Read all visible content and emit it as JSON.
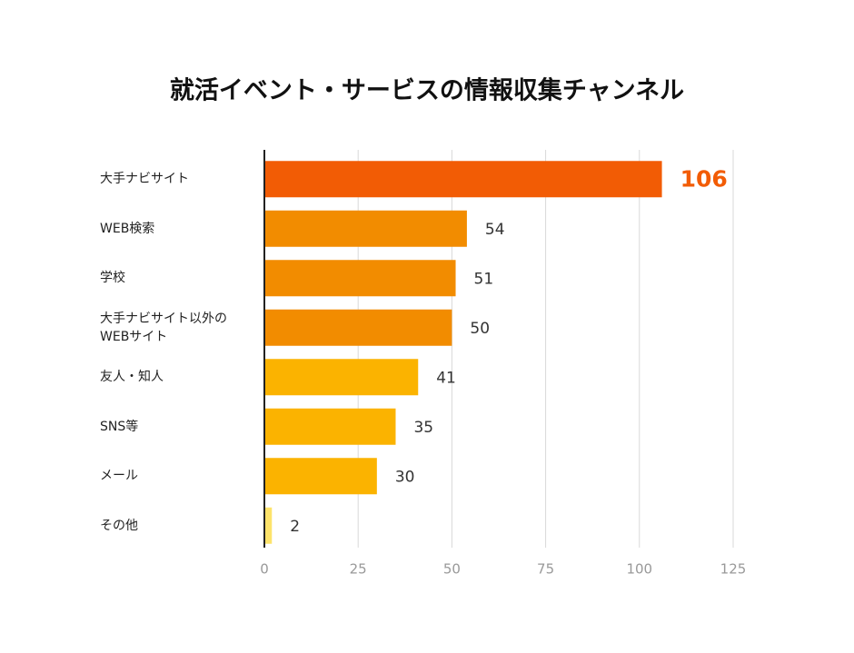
{
  "chart_data": {
    "type": "barh",
    "title": "就活イベント・サービスの情報収集チャンネル",
    "categories": [
      "大手ナビサイト",
      "WEB検索",
      "学校",
      "大手ナビサイト以外の\nWEBサイト",
      "友人・知人",
      "SNS等",
      "メール",
      "その他"
    ],
    "values": [
      106,
      54,
      51,
      50,
      41,
      35,
      30,
      2
    ],
    "colors": [
      "#f25c05",
      "#f28c00",
      "#f28c00",
      "#f28c00",
      "#fbb300",
      "#fbb300",
      "#fbb300",
      "#fde36b"
    ],
    "value_label_colors": [
      "#f25c05",
      "#333333",
      "#333333",
      "#333333",
      "#333333",
      "#333333",
      "#333333",
      "#333333"
    ],
    "xlim": [
      0,
      125
    ],
    "xticks": [
      0,
      25,
      50,
      75,
      100,
      125
    ],
    "grid": true
  }
}
